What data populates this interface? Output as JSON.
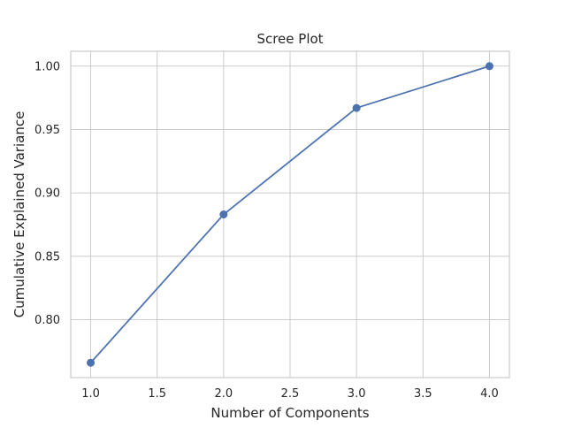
{
  "chart_data": {
    "type": "line",
    "title": "Scree Plot",
    "xlabel": "Number of Components",
    "ylabel": "Cumulative Explained Variance",
    "x": [
      1,
      2,
      3,
      4
    ],
    "series": [
      {
        "values": [
          0.766,
          0.883,
          0.967,
          1.0
        ],
        "color": "#4c72b0",
        "marker": "circle"
      }
    ],
    "xlim": [
      0.85,
      4.15
    ],
    "ylim": [
      0.7543,
      1.0117
    ],
    "xticks": [
      "1.0",
      "1.5",
      "2.0",
      "2.5",
      "3.0",
      "3.5",
      "4.0"
    ],
    "yticks": [
      "0.80",
      "0.85",
      "0.90",
      "0.95",
      "1.00"
    ],
    "grid": true
  }
}
